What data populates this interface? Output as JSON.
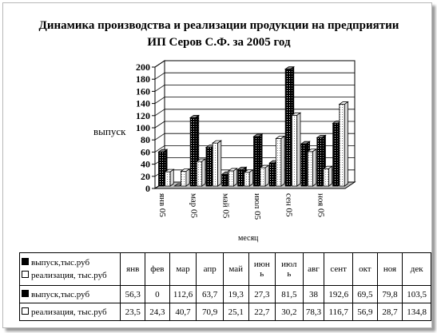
{
  "chart_data": {
    "type": "bar",
    "title": "Динамика производства и реализации продукции  на предприятии ИП Серов С.Ф. за 2005 год",
    "ylabel": "выпуск",
    "xlabel": "месяц",
    "ylim": [
      0,
      200
    ],
    "yticks": [
      0,
      20,
      40,
      60,
      80,
      100,
      120,
      140,
      160,
      180,
      200
    ],
    "categories": [
      "янв 05",
      "фев 05",
      "мар 05",
      "апр 05",
      "май 05",
      "июн 05",
      "июл 05",
      "авг 05",
      "сен 05",
      "окт 05",
      "ноя 05",
      "дек 05"
    ],
    "xtick_labels_shown": [
      "янв 05",
      "мар 05",
      "май 05",
      "июл 05",
      "сен 05",
      "ноя 05"
    ],
    "series": [
      {
        "name": "выпуск,тыс.руб",
        "values": [
          56.3,
          0,
          112.6,
          63.7,
          19.3,
          27.3,
          81.5,
          38,
          192.6,
          69.5,
          79.8,
          103.5
        ]
      },
      {
        "name": "реализация, тыс.руб",
        "values": [
          23.5,
          24.3,
          40.7,
          70.9,
          25.1,
          22.7,
          30.2,
          78.3,
          116.7,
          56.9,
          28.7,
          134.8
        ]
      }
    ],
    "grid": true,
    "legend": "table"
  },
  "table": {
    "months": [
      "янв",
      "фев",
      "мар",
      "апр",
      "май",
      "июн ь",
      "июл ь",
      "авг",
      "сент",
      "окт",
      "ноя",
      "дек"
    ],
    "month_lines": [
      [
        "янв"
      ],
      [
        "фев"
      ],
      [
        "мар"
      ],
      [
        "апр"
      ],
      [
        "май"
      ],
      [
        "июн",
        "ь"
      ],
      [
        "июл",
        "ь"
      ],
      [
        "авг"
      ],
      [
        "сент"
      ],
      [
        "окт"
      ],
      [
        "ноя"
      ],
      [
        "дек"
      ]
    ],
    "rows": [
      {
        "label": "выпуск,тыс.руб",
        "values": [
          "56,3",
          "0",
          "112,6",
          "63,7",
          "19,3",
          "27,3",
          "81,5",
          "38",
          "192,6",
          "69,5",
          "79,8",
          "103,5"
        ]
      },
      {
        "label": "реализация, тыс.руб",
        "values": [
          "23,5",
          "24,3",
          "40,7",
          "70,9",
          "25,1",
          "22,7",
          "30,2",
          "78,3",
          "116,7",
          "56,9",
          "28,7",
          "134,8"
        ]
      }
    ]
  },
  "colors": {
    "series1": "#000000",
    "series2": "#ffffff",
    "wall": "#ffffff",
    "floor": "#c0c0c0"
  }
}
